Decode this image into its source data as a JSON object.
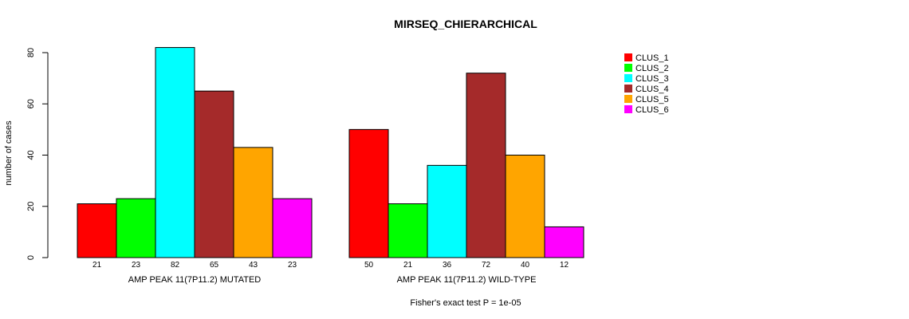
{
  "chart_data": {
    "type": "bar",
    "title": "MIRSEQ_CHIERARCHICAL",
    "ylabel": "number of cases",
    "ylim": [
      0,
      80
    ],
    "yticks": [
      0,
      20,
      40,
      60,
      80
    ],
    "series_names": [
      "CLUS_1",
      "CLUS_2",
      "CLUS_3",
      "CLUS_4",
      "CLUS_5",
      "CLUS_6"
    ],
    "colors": [
      "#ff0000",
      "#00ff00",
      "#00ffff",
      "#a52a2a",
      "#ffa500",
      "#ff00ff"
    ],
    "groups": [
      {
        "label": "AMP PEAK 11(7P11.2) MUTATED",
        "values": [
          21,
          23,
          82,
          65,
          43,
          23
        ]
      },
      {
        "label": "AMP PEAK 11(7P11.2) WILD-TYPE",
        "values": [
          50,
          21,
          36,
          72,
          40,
          12
        ]
      }
    ],
    "legend": "top-right",
    "grid": false,
    "footer": "Fisher's exact test P = 1e-05"
  }
}
